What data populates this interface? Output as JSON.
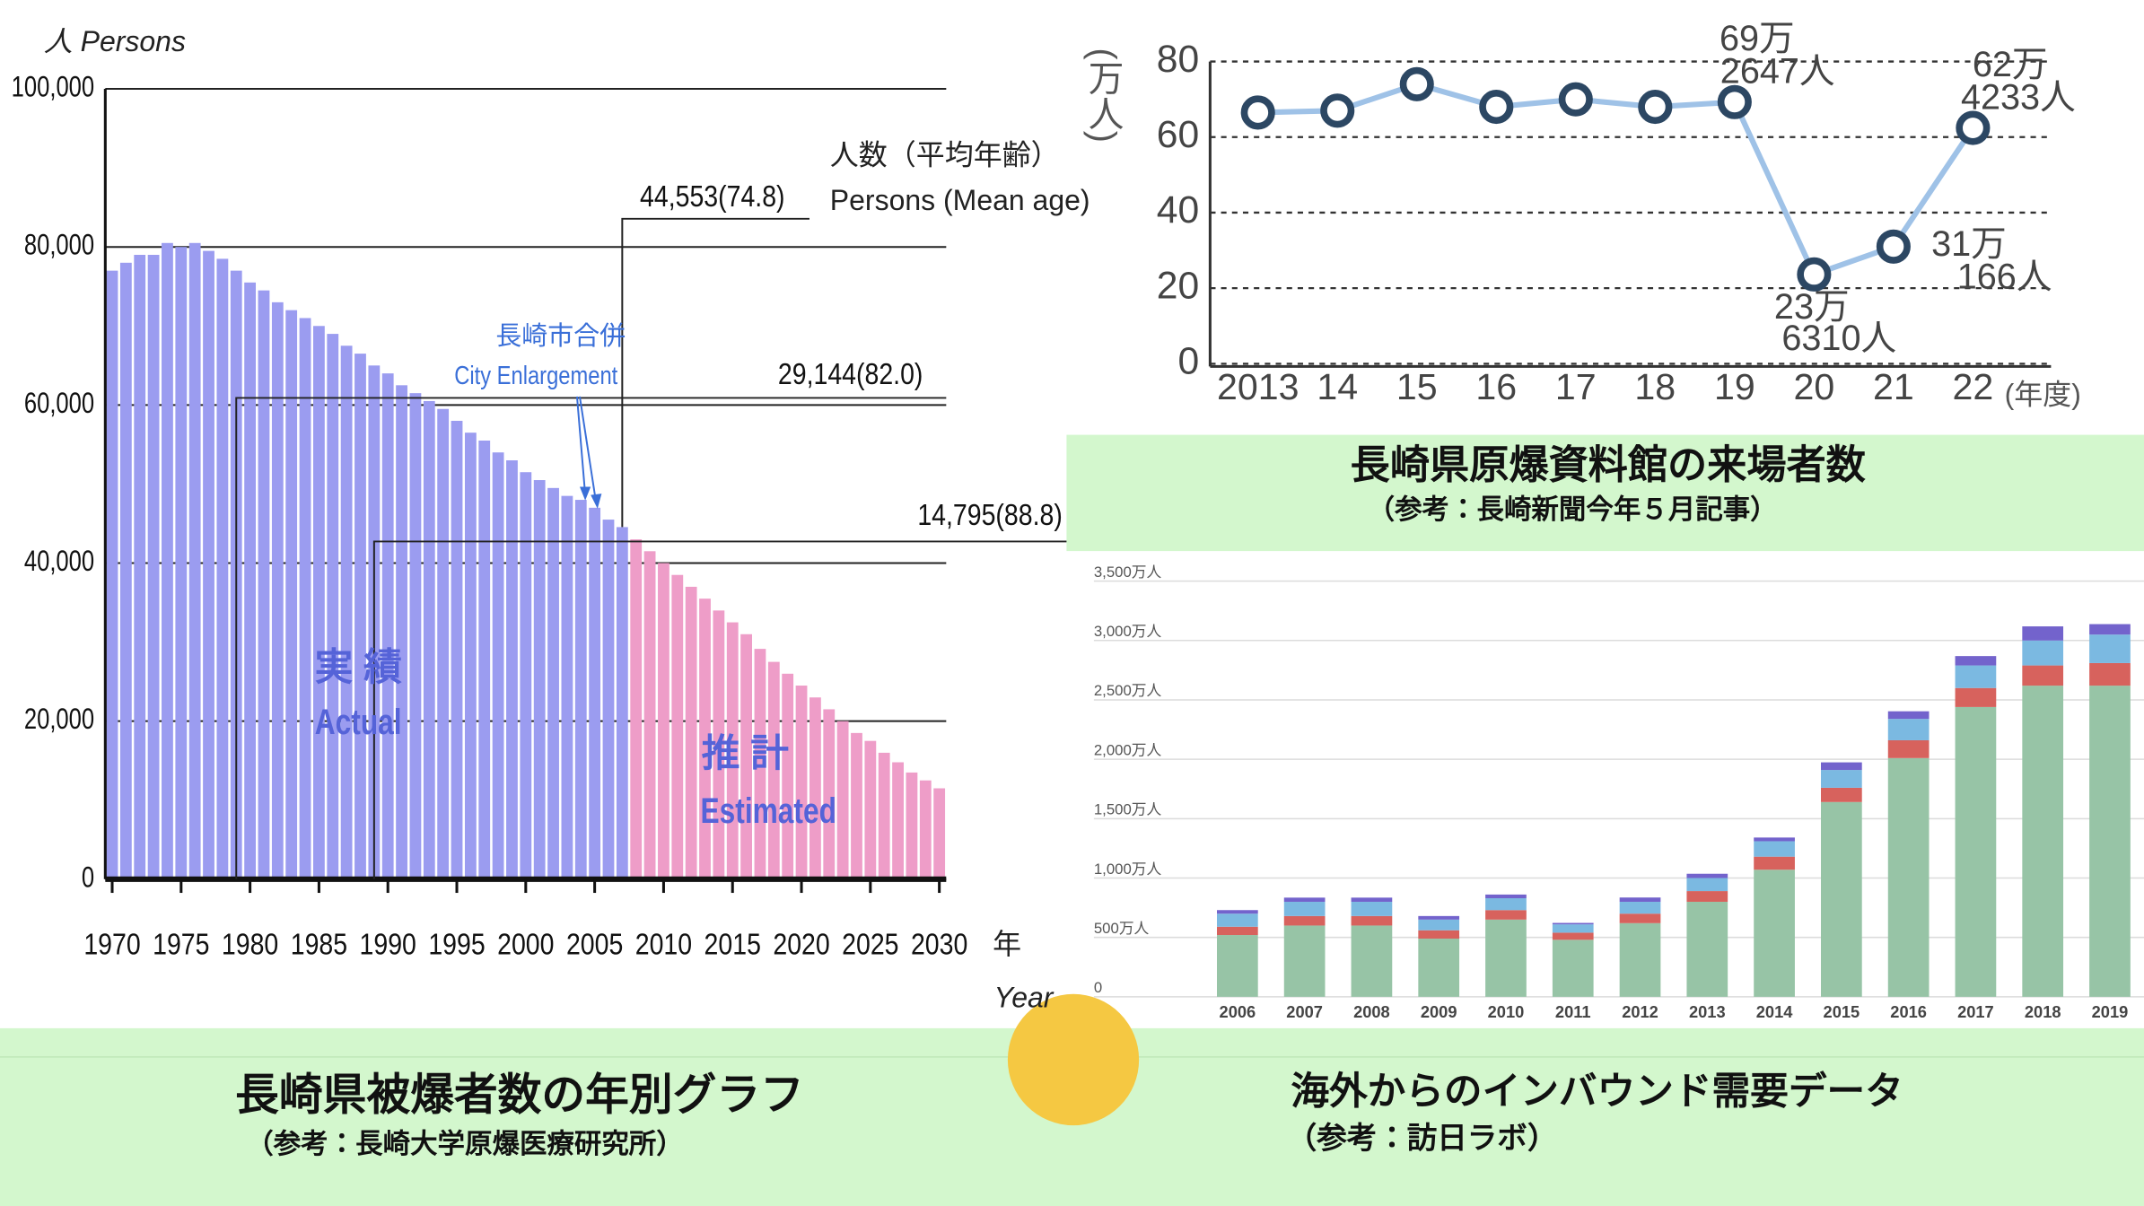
{
  "chart_data": [
    {
      "type": "bar",
      "title": "長崎県被爆者数の年別グラフ",
      "subtitle": "（参考：長崎大学原爆医療研究所）",
      "y_label": "人 Persons",
      "x_label": "年",
      "x_label_en": "Year",
      "value_label_title": "人数（平均年齢）",
      "value_label_title_en": "Persons (Mean age)",
      "event": "長崎市合併",
      "event_en": "City Enlargement",
      "annotations": [
        "44,553(74.8)",
        "29,144(82.0)",
        "14,795(88.8)"
      ],
      "x": [
        1970,
        1971,
        1972,
        1973,
        1974,
        1975,
        1976,
        1977,
        1978,
        1979,
        1980,
        1981,
        1982,
        1983,
        1984,
        1985,
        1986,
        1987,
        1988,
        1989,
        1990,
        1991,
        1992,
        1993,
        1994,
        1995,
        1996,
        1997,
        1998,
        1999,
        2000,
        2001,
        2002,
        2003,
        2004,
        2005,
        2006,
        2007,
        2008,
        2009,
        2010,
        2011,
        2012,
        2013,
        2014,
        2015,
        2016,
        2017,
        2018,
        2019,
        2020,
        2021,
        2022,
        2023,
        2024,
        2025,
        2026,
        2027,
        2028,
        2029,
        2030
      ],
      "series": [
        {
          "name": "Actual",
          "label_ja": "実 績",
          "color": "#9b9cf0",
          "values": [
            77000,
            78000,
            79000,
            79000,
            80500,
            80000,
            80500,
            79500,
            78500,
            77000,
            75500,
            74500,
            73000,
            72000,
            71000,
            70000,
            69000,
            67500,
            66500,
            65000,
            64000,
            62500,
            61500,
            60500,
            59500,
            58000,
            56500,
            55500,
            54000,
            53000,
            51500,
            50500,
            49500,
            48500,
            48000,
            47000,
            45500,
            44553,
            null,
            null,
            null,
            null,
            null,
            null,
            null,
            null,
            null,
            null,
            null,
            null,
            null,
            null,
            null,
            null,
            null,
            null,
            null,
            null,
            null,
            null,
            null
          ]
        },
        {
          "name": "Estimated",
          "label_ja": "推 計",
          "color": "#ee9dc8",
          "values": [
            null,
            null,
            null,
            null,
            null,
            null,
            null,
            null,
            null,
            null,
            null,
            null,
            null,
            null,
            null,
            null,
            null,
            null,
            null,
            null,
            null,
            null,
            null,
            null,
            null,
            null,
            null,
            null,
            null,
            null,
            null,
            null,
            null,
            null,
            null,
            null,
            null,
            null,
            43000,
            41500,
            40000,
            38500,
            37000,
            35500,
            34000,
            32500,
            31000,
            29144,
            27500,
            26000,
            24500,
            23000,
            21500,
            20000,
            18500,
            17500,
            16000,
            14795,
            13500,
            12500,
            11500
          ]
        }
      ],
      "xlim": [
        1969.5,
        2030.5
      ],
      "xticks": [
        1970,
        1975,
        1980,
        1985,
        1990,
        1995,
        2000,
        2005,
        2010,
        2015,
        2020,
        2025,
        2030
      ],
      "ylim": [
        0,
        100000
      ],
      "yticks": [
        0,
        {
          "value": 20000,
          "label": "20,000"
        },
        {
          "value": 40000,
          "label": "40,000"
        },
        {
          "value": 60000,
          "label": "60,000"
        },
        {
          "value": 80000,
          "label": "80,000"
        },
        {
          "value": 100000,
          "label": "100,000"
        }
      ],
      "grid": true
    },
    {
      "type": "line",
      "title": "長崎県原爆資料館の来場者数",
      "subtitle": "（参考：長崎新聞今年５月記事）",
      "y_label": "(万人)",
      "x_label": "(年度)",
      "categories": [
        "2013",
        "14",
        "15",
        "16",
        "17",
        "18",
        "19",
        "20",
        "21",
        "22"
      ],
      "series": [
        {
          "color": "#9fc2e7",
          "marker_color": "#2c4763",
          "values": [
            66.5,
            67,
            74,
            68,
            70,
            68,
            69.2647,
            23.631,
            31.0166,
            62.4233
          ],
          "value_labels": [
            null,
            null,
            null,
            null,
            null,
            null,
            [
              "69万",
              "2647人"
            ],
            [
              "23万",
              "6310人"
            ],
            [
              "31万",
              "166人"
            ],
            [
              "62万",
              "4233人"
            ]
          ]
        }
      ],
      "ylim": [
        0,
        80
      ],
      "yticks": [
        0,
        20,
        40,
        60,
        80
      ],
      "grid": true
    },
    {
      "type": "bar",
      "stacked": true,
      "title": "海外からのインバウンド需要データ",
      "subtitle": "（参考：訪日ラボ）",
      "categories": [
        "2006",
        "2007",
        "2008",
        "2009",
        "2010",
        "2011",
        "2012",
        "2013",
        "2014",
        "2015",
        "2016",
        "2017",
        "2018",
        "2019"
      ],
      "series": [
        {
          "color": "#97c4a6",
          "values": [
            520,
            600,
            600,
            490,
            650,
            480,
            620,
            800,
            1070,
            1640,
            2010,
            2440,
            2620,
            2620
          ]
        },
        {
          "color": "#d7625d",
          "values": [
            70,
            80,
            80,
            70,
            80,
            60,
            80,
            90,
            110,
            120,
            150,
            160,
            170,
            190
          ]
        },
        {
          "color": "#7bb9e1",
          "values": [
            110,
            120,
            120,
            90,
            100,
            70,
            100,
            110,
            130,
            150,
            180,
            190,
            210,
            240
          ]
        },
        {
          "color": "#7363cc",
          "values": [
            30,
            35,
            35,
            30,
            31,
            12,
            36,
            36,
            31,
            64,
            64,
            79,
            119,
            88
          ]
        }
      ],
      "ylim": [
        0,
        3500
      ],
      "yticks": [
        0,
        {
          "value": 500,
          "label": "500万人"
        },
        {
          "value": 1000,
          "label": "1,000万人"
        },
        {
          "value": 1500,
          "label": "1,500万人"
        },
        {
          "value": 2000,
          "label": "2,000万人"
        },
        {
          "value": 2500,
          "label": "2,500万人"
        },
        {
          "value": 3000,
          "label": "3,000万人"
        },
        {
          "value": 3500,
          "label": "3,500万人"
        }
      ],
      "grid": true
    }
  ]
}
